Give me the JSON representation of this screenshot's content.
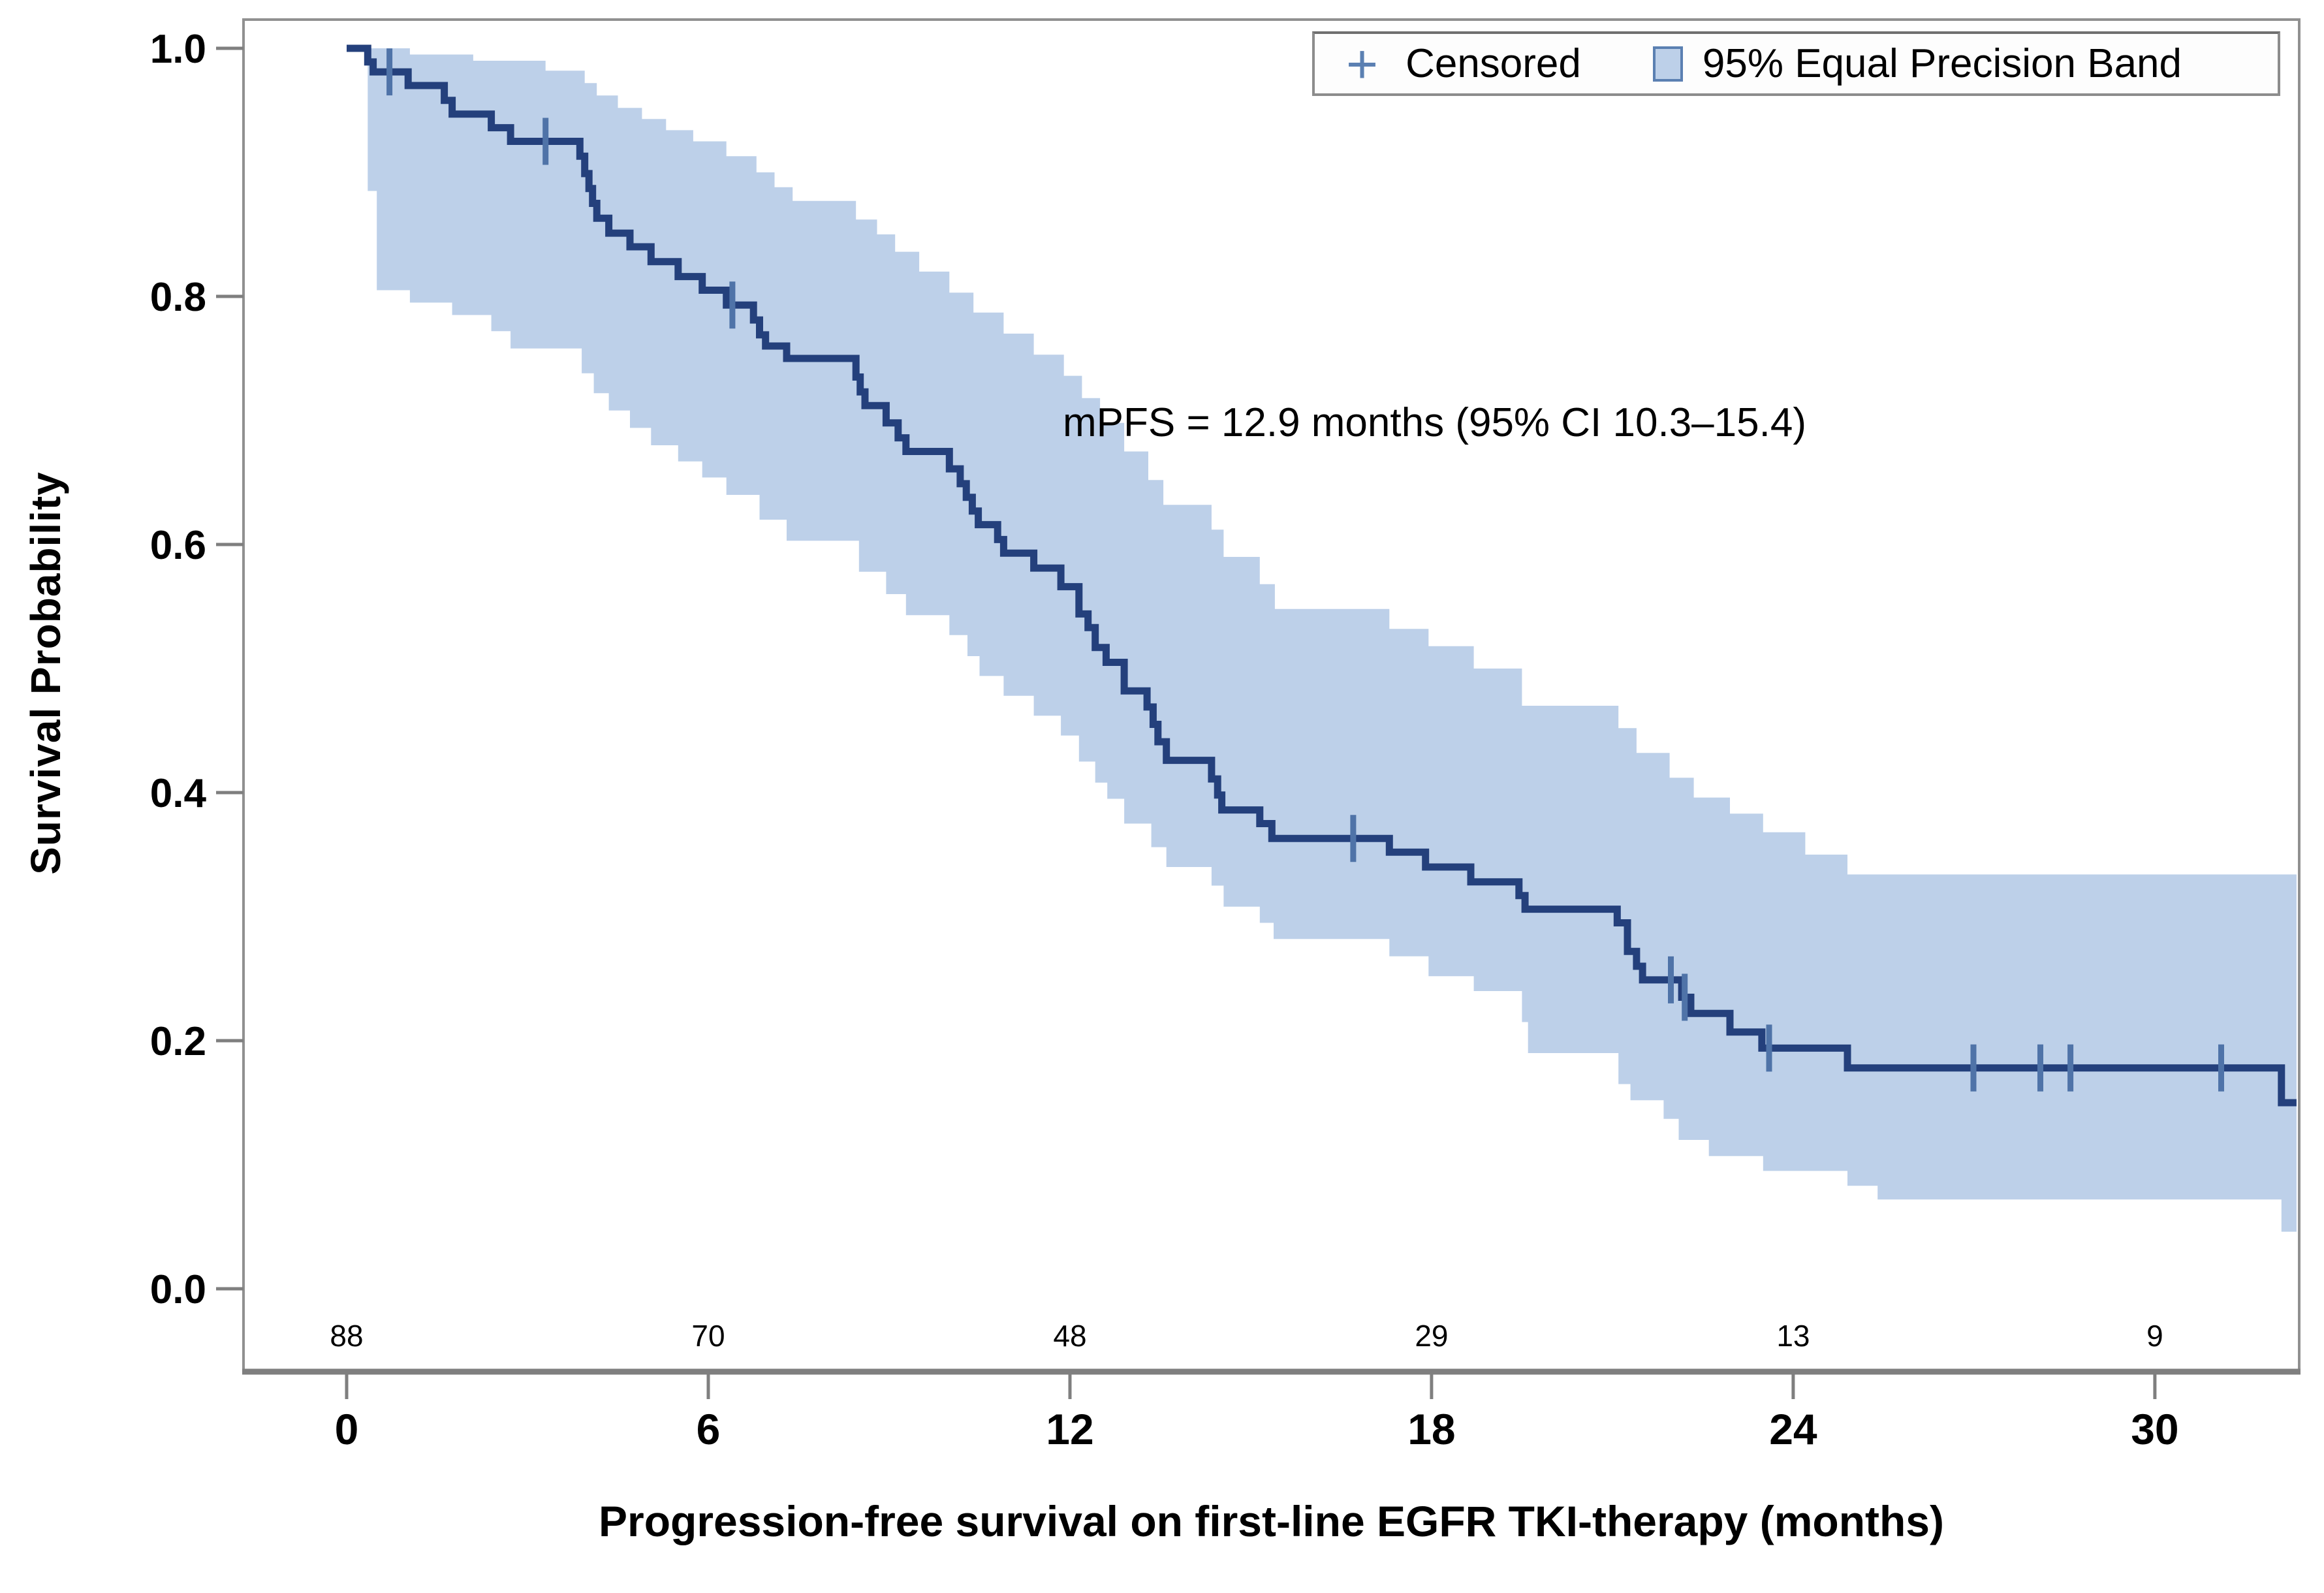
{
  "legend": {
    "censored_symbol": "+",
    "censored_label": "Censored",
    "band_label": "95% Equal Precision Band"
  },
  "chart_data": {
    "type": "line",
    "subtype": "kaplan-meier-step",
    "title": "",
    "xlabel": "Progression-free survival on first-line EGFR TKI-therapy (months)",
    "ylabel": "Survival Probability",
    "annotation": "mPFS = 12.9 months (95% CI 10.3–15.4)",
    "median_pfs_months": 12.9,
    "ci_95_months": "10.3–15.4",
    "xlim": [
      0,
      32.4
    ],
    "ylim": [
      0.0,
      1.0
    ],
    "grid": false,
    "legend_position": "top-right-inside",
    "x_ticks": [
      {
        "value": 0,
        "label": "0"
      },
      {
        "value": 6,
        "label": "6"
      },
      {
        "value": 12,
        "label": "12"
      },
      {
        "value": 18,
        "label": "18"
      },
      {
        "value": 24,
        "label": "24"
      },
      {
        "value": 30,
        "label": "30"
      }
    ],
    "y_ticks": [
      {
        "value": 0.0,
        "label": "0.0"
      },
      {
        "value": 0.2,
        "label": "0.2"
      },
      {
        "value": 0.4,
        "label": "0.4"
      },
      {
        "value": 0.6,
        "label": "0.6"
      },
      {
        "value": 0.8,
        "label": "0.8"
      },
      {
        "value": 1.0,
        "label": "1.0"
      }
    ],
    "at_risk": {
      "times": [
        0,
        6,
        12,
        18,
        24,
        30
      ],
      "counts": [
        "88",
        "70",
        "48",
        "29",
        "13",
        "9"
      ]
    },
    "end_time": 32.35,
    "km_steps": [
      [
        0,
        1.0
      ],
      [
        0.35,
        0.989
      ],
      [
        0.44,
        0.981
      ],
      [
        1.02,
        0.97
      ],
      [
        1.62,
        0.958
      ],
      [
        1.75,
        0.947
      ],
      [
        2.4,
        0.936
      ],
      [
        2.72,
        0.925
      ],
      [
        3.87,
        0.913
      ],
      [
        3.95,
        0.899
      ],
      [
        4.02,
        0.887
      ],
      [
        4.08,
        0.875
      ],
      [
        4.15,
        0.863
      ],
      [
        4.35,
        0.851
      ],
      [
        4.7,
        0.84
      ],
      [
        5.05,
        0.828
      ],
      [
        5.5,
        0.816
      ],
      [
        5.9,
        0.805
      ],
      [
        6.3,
        0.793
      ],
      [
        6.75,
        0.781
      ],
      [
        6.85,
        0.769
      ],
      [
        6.95,
        0.76
      ],
      [
        7.3,
        0.75
      ],
      [
        8.45,
        0.735
      ],
      [
        8.52,
        0.723
      ],
      [
        8.6,
        0.712
      ],
      [
        8.95,
        0.698
      ],
      [
        9.15,
        0.686
      ],
      [
        9.28,
        0.675
      ],
      [
        10.0,
        0.661
      ],
      [
        10.18,
        0.649
      ],
      [
        10.28,
        0.638
      ],
      [
        10.38,
        0.627
      ],
      [
        10.48,
        0.616
      ],
      [
        10.8,
        0.604
      ],
      [
        10.9,
        0.593
      ],
      [
        11.4,
        0.581
      ],
      [
        11.85,
        0.566
      ],
      [
        12.15,
        0.544
      ],
      [
        12.3,
        0.533
      ],
      [
        12.42,
        0.517
      ],
      [
        12.6,
        0.505
      ],
      [
        12.9,
        0.482
      ],
      [
        13.28,
        0.469
      ],
      [
        13.38,
        0.455
      ],
      [
        13.46,
        0.441
      ],
      [
        13.6,
        0.426
      ],
      [
        14.35,
        0.411
      ],
      [
        14.45,
        0.398
      ],
      [
        14.52,
        0.386
      ],
      [
        15.15,
        0.375
      ],
      [
        15.35,
        0.363
      ],
      [
        17.3,
        0.352
      ],
      [
        17.9,
        0.34
      ],
      [
        18.65,
        0.328
      ],
      [
        19.45,
        0.317
      ],
      [
        19.55,
        0.306
      ],
      [
        21.08,
        0.295
      ],
      [
        21.25,
        0.272
      ],
      [
        21.4,
        0.26
      ],
      [
        21.5,
        0.249
      ],
      [
        22.15,
        0.235
      ],
      [
        22.3,
        0.222
      ],
      [
        22.95,
        0.207
      ],
      [
        23.48,
        0.194
      ],
      [
        24.9,
        0.178
      ],
      [
        32.1,
        0.15
      ]
    ],
    "censor_times": [
      0.71,
      3.3,
      6.4,
      16.7,
      21.97,
      22.2,
      23.6,
      26.99,
      28.1,
      28.6,
      31.1
    ],
    "band_upper": [
      [
        0,
        1.0
      ],
      [
        1.05,
        0.995
      ],
      [
        2.1,
        0.99
      ],
      [
        3.3,
        0.982
      ],
      [
        3.95,
        0.972
      ],
      [
        4.15,
        0.962
      ],
      [
        4.5,
        0.952
      ],
      [
        4.9,
        0.943
      ],
      [
        5.3,
        0.934
      ],
      [
        5.75,
        0.925
      ],
      [
        6.3,
        0.913
      ],
      [
        6.8,
        0.9
      ],
      [
        7.1,
        0.888
      ],
      [
        7.4,
        0.877
      ],
      [
        8.45,
        0.862
      ],
      [
        8.8,
        0.85
      ],
      [
        9.1,
        0.836
      ],
      [
        9.5,
        0.82
      ],
      [
        10.0,
        0.803
      ],
      [
        10.4,
        0.787
      ],
      [
        10.9,
        0.77
      ],
      [
        11.4,
        0.753
      ],
      [
        11.9,
        0.736
      ],
      [
        12.2,
        0.718
      ],
      [
        12.5,
        0.698
      ],
      [
        12.9,
        0.675
      ],
      [
        13.3,
        0.652
      ],
      [
        13.55,
        0.632
      ],
      [
        14.35,
        0.612
      ],
      [
        14.55,
        0.59
      ],
      [
        15.15,
        0.568
      ],
      [
        15.4,
        0.548
      ],
      [
        17.3,
        0.532
      ],
      [
        17.95,
        0.518
      ],
      [
        18.7,
        0.5
      ],
      [
        19.5,
        0.47
      ],
      [
        21.1,
        0.452
      ],
      [
        21.4,
        0.432
      ],
      [
        21.95,
        0.412
      ],
      [
        22.35,
        0.396
      ],
      [
        22.95,
        0.383
      ],
      [
        23.5,
        0.368
      ],
      [
        24.2,
        0.35
      ],
      [
        24.9,
        0.334
      ]
    ],
    "band_lower": [
      [
        0,
        1.0
      ],
      [
        0.35,
        0.885
      ],
      [
        0.5,
        0.805
      ],
      [
        1.05,
        0.795
      ],
      [
        1.75,
        0.785
      ],
      [
        2.4,
        0.772
      ],
      [
        2.72,
        0.758
      ],
      [
        3.9,
        0.738
      ],
      [
        4.1,
        0.722
      ],
      [
        4.35,
        0.708
      ],
      [
        4.7,
        0.694
      ],
      [
        5.05,
        0.68
      ],
      [
        5.5,
        0.667
      ],
      [
        5.9,
        0.654
      ],
      [
        6.3,
        0.64
      ],
      [
        6.85,
        0.62
      ],
      [
        7.3,
        0.603
      ],
      [
        8.5,
        0.578
      ],
      [
        8.95,
        0.56
      ],
      [
        9.28,
        0.543
      ],
      [
        10.0,
        0.527
      ],
      [
        10.3,
        0.51
      ],
      [
        10.5,
        0.494
      ],
      [
        10.9,
        0.478
      ],
      [
        11.4,
        0.462
      ],
      [
        11.85,
        0.446
      ],
      [
        12.15,
        0.425
      ],
      [
        12.42,
        0.408
      ],
      [
        12.62,
        0.395
      ],
      [
        12.9,
        0.375
      ],
      [
        13.35,
        0.356
      ],
      [
        13.6,
        0.34
      ],
      [
        14.35,
        0.325
      ],
      [
        14.55,
        0.308
      ],
      [
        15.15,
        0.295
      ],
      [
        15.38,
        0.282
      ],
      [
        17.3,
        0.268
      ],
      [
        17.95,
        0.252
      ],
      [
        18.7,
        0.24
      ],
      [
        19.5,
        0.215
      ],
      [
        19.6,
        0.19
      ],
      [
        21.1,
        0.165
      ],
      [
        21.3,
        0.152
      ],
      [
        21.85,
        0.137
      ],
      [
        22.1,
        0.12
      ],
      [
        22.6,
        0.107
      ],
      [
        23.5,
        0.095
      ],
      [
        24.9,
        0.083
      ],
      [
        25.4,
        0.072
      ],
      [
        32.1,
        0.046
      ]
    ],
    "colors": {
      "line": "#24407c",
      "band": "#bdd0e9",
      "censor": "#4f73a8",
      "frame": "#909090",
      "axis": "#7f7f7f",
      "text": "#000000",
      "legend_symbol": "#5b80b2"
    }
  }
}
